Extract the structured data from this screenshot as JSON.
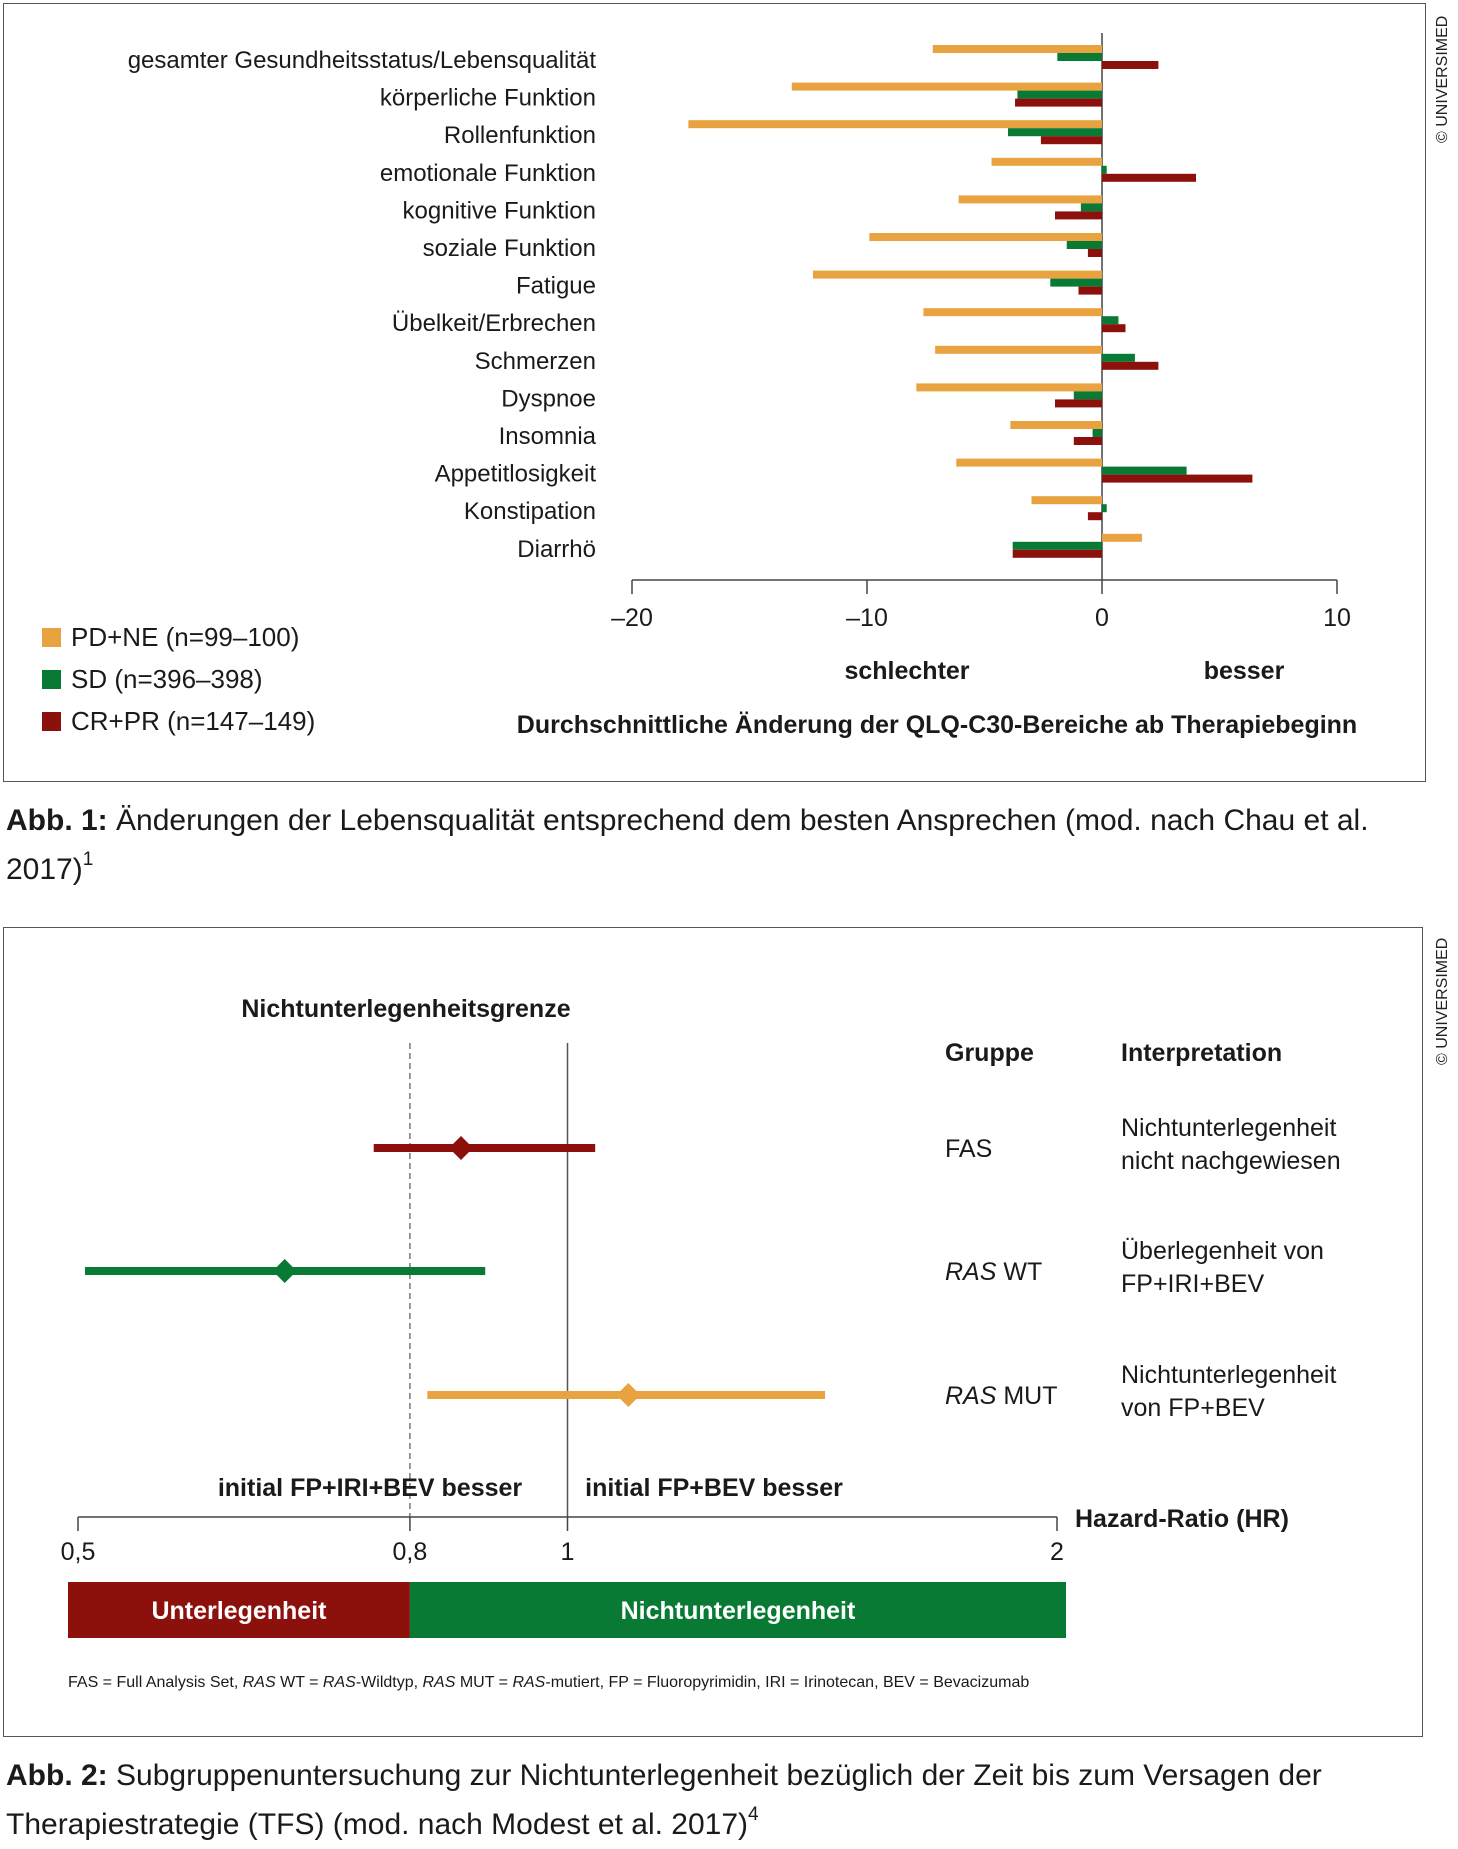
{
  "figure1": {
    "chart_data": {
      "type": "bar",
      "orientation": "horizontal",
      "categories": [
        "gesamter Gesundheitsstatus/Lebensqualität",
        "körperliche Funktion",
        "Rollenfunktion",
        "emotionale Funktion",
        "kognitive Funktion",
        "soziale Funktion",
        "Fatigue",
        "Übelkeit/Erbrechen",
        "Schmerzen",
        "Dyspnoe",
        "Insomnia",
        "Appetitlosigkeit",
        "Konstipation",
        "Diarrhö"
      ],
      "series": [
        {
          "name": "PD+NE (n=99–100)",
          "color": "#e9a240",
          "values": [
            -7.2,
            -13.2,
            -17.6,
            -4.7,
            -6.1,
            -9.9,
            -12.3,
            -7.6,
            -7.1,
            -7.9,
            -3.9,
            -6.2,
            -3.0,
            1.7
          ]
        },
        {
          "name": "SD (n=396–398)",
          "color": "#087a34",
          "values": [
            -1.9,
            -3.6,
            -4.0,
            0.2,
            -0.9,
            -1.5,
            -2.2,
            0.7,
            1.4,
            -1.2,
            -0.4,
            3.6,
            0.2,
            -3.8
          ]
        },
        {
          "name": "CR+PR (n=147–149)",
          "color": "#8c100c",
          "values": [
            2.4,
            -3.7,
            -2.6,
            4.0,
            -2.0,
            -0.6,
            -1.0,
            1.0,
            2.4,
            -2.0,
            -1.2,
            6.4,
            -0.6,
            -3.8
          ]
        }
      ],
      "xlim": [
        -20,
        10
      ],
      "xticks": [
        "–20",
        "–10",
        "0",
        "10"
      ],
      "xtick_values": [
        -20,
        -10,
        0,
        10
      ],
      "annotations": {
        "left": "schlechter",
        "right": "besser"
      },
      "xlabel": "Durchschnittliche Änderung der QLQ-C30-Bereiche ab Therapiebeginn",
      "legend": "bottom-left"
    },
    "watermark": "© UNIVERSIMED",
    "caption_label": "Abb. 1:",
    "caption_text": "Änderungen der Lebensqualität entsprechend dem besten Ansprechen (mod. nach Chau et al. 2017)",
    "caption_ref": "1"
  },
  "figure2": {
    "chart_data": {
      "type": "forest",
      "xscale": "log",
      "xlim": [
        0.5,
        2
      ],
      "xticks": [
        "0,5",
        "0,8",
        "1",
        "2"
      ],
      "xtick_values": [
        0.5,
        0.8,
        1,
        2
      ],
      "xlabel": "Hazard-Ratio (HR)",
      "reference_line": 1,
      "margin_line": 0.8,
      "margin_label": "Nichtunterlegenheitsgrenze",
      "left_label": "initial FP+IRI+BEV besser",
      "right_label": "initial FP+BEV besser",
      "column_headers": {
        "group": "Gruppe",
        "interpretation": "Interpretation"
      },
      "rows": [
        {
          "group_italic": "",
          "group": "FAS",
          "hr": 0.86,
          "ci_low": 0.76,
          "ci_high": 1.04,
          "color": "#8c100c",
          "interpretation": [
            "Nichtunterlegenheit",
            "nicht nachgewiesen"
          ]
        },
        {
          "group_italic": "RAS",
          "group": " WT",
          "hr": 0.67,
          "ci_low": 0.505,
          "ci_high": 0.89,
          "color": "#087a34",
          "interpretation": [
            "Überlegenheit von",
            "FP+IRI+BEV"
          ]
        },
        {
          "group_italic": "RAS",
          "group": " MUT",
          "hr": 1.09,
          "ci_low": 0.82,
          "ci_high": 1.44,
          "color": "#e9a240",
          "interpretation": [
            "Nichtunterlegenheit",
            "von FP+BEV"
          ]
        }
      ],
      "zones": [
        {
          "label": "Unterlegenheit",
          "from": 0.5,
          "to": 0.8,
          "color": "#8c100c"
        },
        {
          "label": "Nichtunterlegenheit",
          "from": 0.8,
          "to": 2,
          "color": "#087a34"
        }
      ]
    },
    "footnote": "FAS = Full Analysis Set, RAS WT = RAS-Wildtyp, RAS MUT = RAS-mutiert, FP = Fluoropyrimidin, IRI = Irinotecan, BEV = Bevacizumab",
    "watermark": "© UNIVERSIMED",
    "caption_label": "Abb. 2:",
    "caption_text": "Subgruppenuntersuchung zur Nichtunterlegenheit bezüglich der Zeit bis zum Versagen der Therapiestrategie (TFS) (mod. nach Modest et al. 2017)",
    "caption_ref": "4"
  }
}
